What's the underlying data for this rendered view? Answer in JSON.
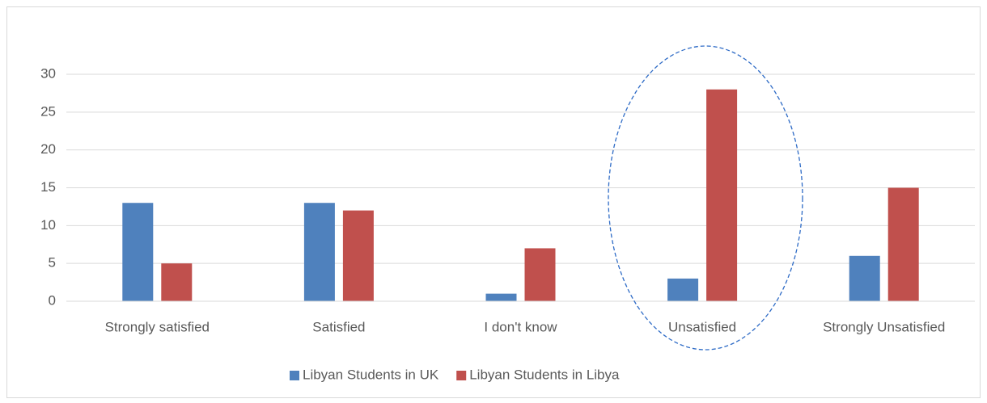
{
  "chart_data": {
    "type": "bar",
    "categories": [
      "Strongly satisfied",
      "Satisfied",
      "I don't know",
      "Unsatisfied",
      "Strongly Unsatisfied"
    ],
    "series": [
      {
        "name": "Libyan Students in UK",
        "color": "#4f81bd",
        "values": [
          13,
          13,
          1,
          3,
          6
        ]
      },
      {
        "name": "Libyan Students in Libya",
        "color": "#c0504d",
        "values": [
          5,
          12,
          7,
          28,
          15
        ]
      }
    ],
    "ylim": [
      0,
      30
    ],
    "yticks": [
      0,
      5,
      10,
      15,
      20,
      25,
      30
    ],
    "grid": true,
    "legend": "bottom"
  }
}
